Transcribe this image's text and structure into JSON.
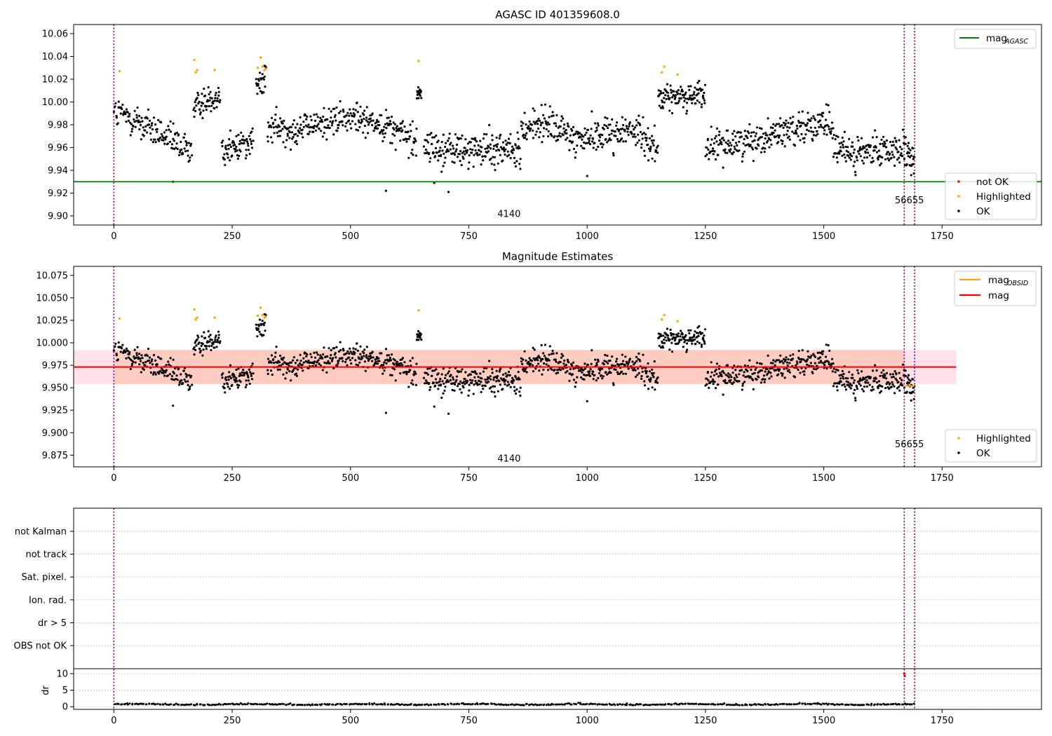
{
  "figure": {
    "colors": {
      "ok": "#000000",
      "highlighted": "#ffa500",
      "not_ok": "#ff0000",
      "mag_agasc": "#008000",
      "mag_obsid": "#ffa500",
      "mag": "#ff0000",
      "obs_marker": "#800080",
      "band_outer": "#ffc0cb",
      "band_inner": "#ffa07a"
    }
  },
  "chart_data": [
    {
      "type": "scatter",
      "title": "AGASC ID 401359608.0",
      "xlim": [
        -85,
        1960
      ],
      "ylim": [
        9.892,
        10.068
      ],
      "x_ticks": [
        "0",
        "250",
        "500",
        "750",
        "1000",
        "1250",
        "1500",
        "1750"
      ],
      "x_tick_values": [
        0,
        250,
        500,
        750,
        1000,
        1250,
        1500,
        1750
      ],
      "y_ticks": [
        "9.90",
        "9.92",
        "9.94",
        "9.96",
        "9.98",
        "10.00",
        "10.02",
        "10.04",
        "10.06"
      ],
      "y_tick_values": [
        9.9,
        9.92,
        9.94,
        9.96,
        9.98,
        10.0,
        10.02,
        10.04,
        10.06
      ],
      "mag_agasc": 9.93,
      "obs_boundaries": [
        0,
        1670,
        1692
      ],
      "obs_labels": [
        {
          "text": "4140",
          "x": 835,
          "y": 9.899
        },
        {
          "text": "56655",
          "x": 1681,
          "y": 9.911
        }
      ],
      "legend_lines": [
        {
          "label": "mag",
          "sub": "AGASC"
        }
      ],
      "legend_markers": [
        "not OK",
        "Highlighted",
        "OK"
      ],
      "highlighted_points": [
        [
          12,
          10.027
        ],
        [
          170,
          10.037
        ],
        [
          173,
          10.026
        ],
        [
          176,
          10.028
        ],
        [
          213,
          10.028
        ],
        [
          304,
          10.03
        ],
        [
          310,
          10.039
        ],
        [
          314,
          10.031
        ],
        [
          318,
          10.028
        ],
        [
          321,
          10.029
        ],
        [
          644,
          10.036
        ],
        [
          1158,
          10.026
        ],
        [
          1163,
          10.031
        ],
        [
          1191,
          10.024
        ]
      ],
      "ok_segments": [
        {
          "x": [
            0,
            165
          ],
          "levels": [
            9.99,
            9.985,
            9.975,
            9.965,
            9.957
          ],
          "spread": 0.011,
          "n": 150
        },
        {
          "x": [
            168,
            225
          ],
          "levels": [
            9.995,
            10.008
          ],
          "spread": 0.009,
          "n": 60
        },
        {
          "x": [
            228,
            295
          ],
          "levels": [
            9.956,
            9.968
          ],
          "spread": 0.01,
          "n": 70
        },
        {
          "x": [
            300,
            322
          ],
          "levels": [
            10.012,
            10.02
          ],
          "spread": 0.009,
          "n": 24
        },
        {
          "x": [
            324,
            640
          ],
          "levels": [
            9.978,
            9.976,
            9.983,
            9.986,
            9.98,
            9.965
          ],
          "spread": 0.01,
          "n": 300
        },
        {
          "x": [
            640,
            650
          ],
          "levels": [
            10.01
          ],
          "spread": 0.009,
          "n": 14
        },
        {
          "x": [
            655,
            860
          ],
          "levels": [
            9.96,
            9.958,
            9.957,
            9.96,
            9.955
          ],
          "spread": 0.011,
          "n": 210
        },
        {
          "x": [
            860,
            1150
          ],
          "levels": [
            9.978,
            9.98,
            9.968,
            9.972,
            9.975,
            9.962
          ],
          "spread": 0.011,
          "n": 280
        },
        {
          "x": [
            1150,
            1250
          ],
          "levels": [
            10.003,
            10.007
          ],
          "spread": 0.008,
          "n": 110
        },
        {
          "x": [
            1250,
            1520
          ],
          "levels": [
            9.958,
            9.965,
            9.97,
            9.98,
            9.978
          ],
          "spread": 0.01,
          "n": 270
        },
        {
          "x": [
            1520,
            1670
          ],
          "levels": [
            9.958,
            9.955,
            9.96
          ],
          "spread": 0.01,
          "n": 150
        },
        {
          "x": [
            1670,
            1692
          ],
          "levels": [
            9.952,
            9.948
          ],
          "spread": 0.012,
          "n": 30
        }
      ],
      "ok_outliers": [
        [
          125,
          9.93
        ],
        [
          575,
          9.922
        ],
        [
          707,
          9.921
        ],
        [
          677,
          9.929
        ],
        [
          1000,
          9.935
        ]
      ]
    },
    {
      "type": "scatter",
      "title": "Magnitude Estimates",
      "xlim": [
        -85,
        1960
      ],
      "ylim": [
        9.862,
        10.085
      ],
      "x_ticks": [
        "0",
        "250",
        "500",
        "750",
        "1000",
        "1250",
        "1500",
        "1750"
      ],
      "x_tick_values": [
        0,
        250,
        500,
        750,
        1000,
        1250,
        1500,
        1750
      ],
      "y_ticks": [
        "9.875",
        "9.900",
        "9.925",
        "9.950",
        "9.975",
        "10.000",
        "10.025",
        "10.050",
        "10.075"
      ],
      "y_tick_values": [
        9.875,
        9.9,
        9.925,
        9.95,
        9.975,
        10.0,
        10.025,
        10.05,
        10.075
      ],
      "mag": 9.973,
      "mag_obsid": {
        "x": [
          1670,
          1692
        ],
        "value": 9.952
      },
      "band_outer": [
        9.954,
        9.992
      ],
      "band_inner": [
        9.954,
        9.992
      ],
      "band_x": [
        -85,
        1780
      ],
      "obs_boundaries": [
        0,
        1670,
        1692
      ],
      "obs_labels": [
        {
          "text": "4140",
          "x": 835,
          "y": 9.868
        },
        {
          "text": "56655",
          "x": 1681,
          "y": 9.884
        }
      ],
      "legend_lines": [
        {
          "label": "mag",
          "sub": "OBSID"
        },
        {
          "label": "mag",
          "sub": ""
        }
      ],
      "legend_markers": [
        "Highlighted",
        "OK"
      ]
    },
    {
      "type": "scatter",
      "title": "",
      "xlim": [
        -85,
        1960
      ],
      "x_ticks": [
        "0",
        "250",
        "500",
        "750",
        "1000",
        "1250",
        "1500",
        "1750"
      ],
      "x_tick_values": [
        0,
        250,
        500,
        750,
        1000,
        1250,
        1500,
        1750
      ],
      "flag_labels": [
        "not Kalman",
        "not track",
        "Sat. pixel.",
        "Ion. rad.",
        "dr > 5",
        "OBS not OK"
      ],
      "dr_ylabel": "dr",
      "dr_ylim": [
        -0.8,
        11.5
      ],
      "dr_ticks": [
        "0",
        "5",
        "10"
      ],
      "dr_tick_values": [
        0,
        5,
        10
      ],
      "dr_level": 0.45,
      "dr_red_points": [
        [
          1670,
          10.0
        ],
        [
          1671,
          9.3
        ]
      ],
      "obs_boundaries": [
        0,
        1670,
        1692
      ]
    }
  ]
}
